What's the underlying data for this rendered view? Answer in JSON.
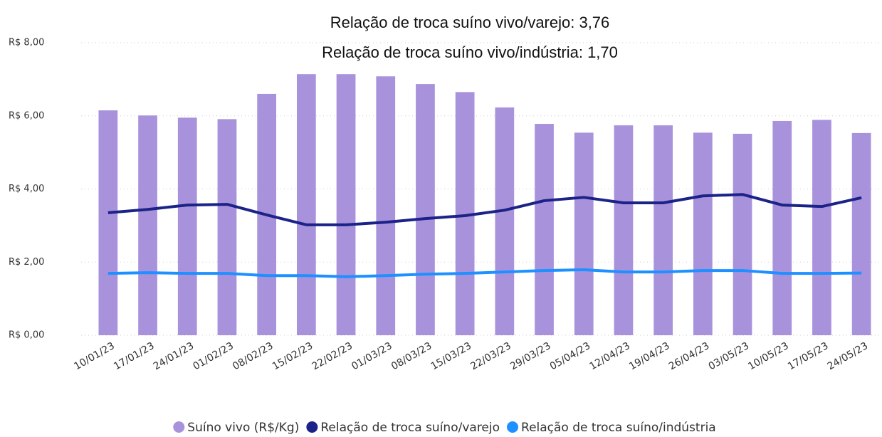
{
  "chart_data": {
    "type": "bar-line",
    "title": "Relação de troca suíno vivo/varejo: 3,76",
    "subtitle": "Relação de troca suíno vivo/indústria: 1,70",
    "categories": [
      "10/01/23",
      "17/01/23",
      "24/01/23",
      "01/02/23",
      "08/02/23",
      "15/02/23",
      "22/02/23",
      "01/03/23",
      "08/03/23",
      "15/03/23",
      "22/03/23",
      "29/03/23",
      "05/04/23",
      "12/04/23",
      "19/04/23",
      "26/04/23",
      "03/05/23",
      "10/05/23",
      "17/05/23",
      "24/05/23"
    ],
    "series": [
      {
        "name": "Suíno vivo (R$/Kg)",
        "kind": "bar",
        "color": "#a992dc",
        "values": [
          6.15,
          6.01,
          5.95,
          5.91,
          6.6,
          7.14,
          7.14,
          7.08,
          6.87,
          6.65,
          6.23,
          5.78,
          5.54,
          5.74,
          5.74,
          5.54,
          5.51,
          5.86,
          5.89,
          5.53
        ]
      },
      {
        "name": "Relação de troca suíno/varejo",
        "kind": "line",
        "color": "#1c2388",
        "values": [
          3.35,
          3.44,
          3.56,
          3.58,
          3.29,
          3.02,
          3.02,
          3.09,
          3.19,
          3.27,
          3.42,
          3.68,
          3.77,
          3.62,
          3.62,
          3.81,
          3.85,
          3.56,
          3.52,
          3.76
        ]
      },
      {
        "name": "Relação de troca suíno/indústria",
        "kind": "line",
        "color": "#1e90ff",
        "values": [
          1.69,
          1.71,
          1.69,
          1.69,
          1.63,
          1.63,
          1.6,
          1.63,
          1.67,
          1.69,
          1.73,
          1.77,
          1.79,
          1.73,
          1.73,
          1.77,
          1.77,
          1.69,
          1.69,
          1.7
        ]
      }
    ],
    "ylim": [
      0,
      8
    ],
    "yticks": [
      {
        "value": 0,
        "label": "R$ 0,00"
      },
      {
        "value": 2,
        "label": "R$ 2,00"
      },
      {
        "value": 4,
        "label": "R$ 4,00"
      },
      {
        "value": 6,
        "label": "R$ 6,00"
      },
      {
        "value": 8,
        "label": "R$ 8,00"
      }
    ],
    "grid": true,
    "legend": "bottom"
  }
}
